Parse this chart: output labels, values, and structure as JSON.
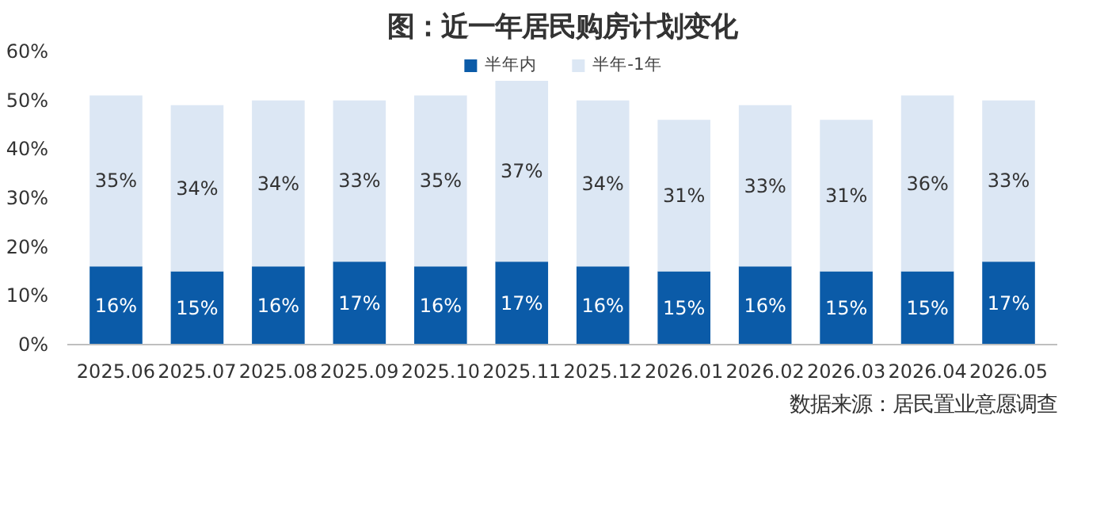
{
  "chart_data": {
    "type": "bar",
    "stacked": true,
    "title": "图：近一年居民购房计划变化",
    "categories": [
      "2025.06",
      "2025.07",
      "2025.08",
      "2025.09",
      "2025.10",
      "2025.11",
      "2025.12",
      "2026.01",
      "2026.02",
      "2026.03",
      "2026.04",
      "2026.05"
    ],
    "series": [
      {
        "name": "半年内",
        "color": "#0b5ba8",
        "values": [
          16,
          15,
          16,
          17,
          16,
          17,
          16,
          15,
          16,
          15,
          15,
          17
        ],
        "value_labels": [
          "16%",
          "15%",
          "16%",
          "17%",
          "16%",
          "17%",
          "16%",
          "15%",
          "16%",
          "15%",
          "15%",
          "17%"
        ]
      },
      {
        "name": "半年-1年",
        "color": "#dce7f4",
        "values": [
          35,
          34,
          34,
          33,
          35,
          37,
          34,
          31,
          33,
          31,
          36,
          33
        ],
        "value_labels": [
          "35%",
          "34%",
          "34%",
          "33%",
          "35%",
          "37%",
          "34%",
          "31%",
          "33%",
          "31%",
          "36%",
          "33%"
        ]
      }
    ],
    "ylim": [
      0,
      60
    ],
    "yticks": [
      {
        "value": 0,
        "label": "0%"
      },
      {
        "value": 10,
        "label": "10%"
      },
      {
        "value": 20,
        "label": "20%"
      },
      {
        "value": 30,
        "label": "30%"
      },
      {
        "value": 40,
        "label": "40%"
      },
      {
        "value": 50,
        "label": "50%"
      },
      {
        "value": 60,
        "label": "60%"
      }
    ],
    "grid": false,
    "legend": "top",
    "annotations": [
      "数据来源：居民置业意愿调查"
    ]
  }
}
